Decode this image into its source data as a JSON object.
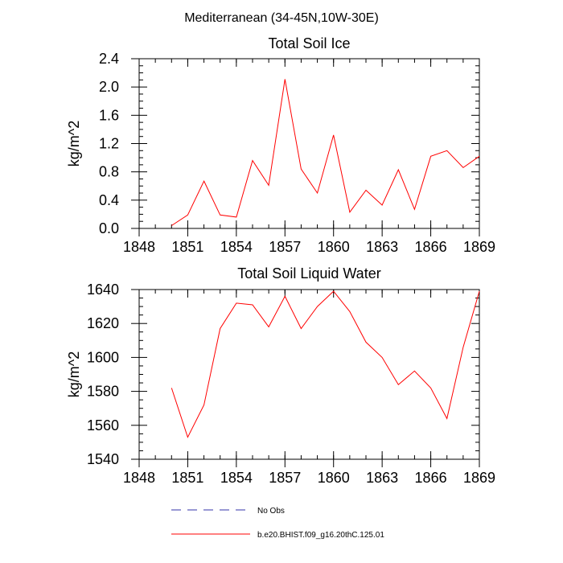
{
  "header": {
    "title": "Mediterranean (34-45N,10W-30E)"
  },
  "chart_data": [
    {
      "type": "line",
      "title": "Total Soil Ice",
      "ylabel": "kg/m^2",
      "xlim": [
        1848,
        1869
      ],
      "ylim": [
        0,
        2.4
      ],
      "xticks": [
        "1848",
        "1851",
        "1854",
        "1857",
        "1860",
        "1863",
        "1866",
        "1869"
      ],
      "yticks": [
        "0.0",
        "0.4",
        "0.8",
        "1.2",
        "1.6",
        "2.0",
        "2.4"
      ],
      "series": [
        {
          "name": "b.e20.BHIST.f09_g16.20thC.125.01",
          "color": "#ff0000",
          "x": [
            1850,
            1851,
            1852,
            1853,
            1854,
            1855,
            1856,
            1857,
            1858,
            1859,
            1860,
            1861,
            1862,
            1863,
            1864,
            1865,
            1866,
            1867,
            1868,
            1869
          ],
          "y": [
            0.04,
            0.19,
            0.67,
            0.19,
            0.16,
            0.96,
            0.61,
            2.11,
            0.84,
            0.5,
            1.32,
            0.23,
            0.54,
            0.33,
            0.83,
            0.27,
            1.02,
            1.1,
            0.86,
            1.02
          ]
        }
      ]
    },
    {
      "type": "line",
      "title": "Total Soil Liquid Water",
      "ylabel": "kg/m^2",
      "xlim": [
        1848,
        1869
      ],
      "ylim": [
        1540,
        1640
      ],
      "xticks": [
        "1848",
        "1851",
        "1854",
        "1857",
        "1860",
        "1863",
        "1866",
        "1869"
      ],
      "yticks": [
        "1540",
        "1560",
        "1580",
        "1600",
        "1620",
        "1640"
      ],
      "series": [
        {
          "name": "b.e20.BHIST.f09_g16.20thC.125.01",
          "color": "#ff0000",
          "x": [
            1850,
            1851,
            1852,
            1853,
            1854,
            1855,
            1856,
            1857,
            1858,
            1859,
            1860,
            1861,
            1862,
            1863,
            1864,
            1865,
            1866,
            1867,
            1868,
            1869
          ],
          "y": [
            1582,
            1553,
            1572,
            1617,
            1632,
            1631,
            1618,
            1636,
            1617,
            1630,
            1639,
            1627,
            1609,
            1600,
            1584,
            1592,
            1582,
            1564,
            1606,
            1639
          ]
        }
      ]
    }
  ],
  "legend": {
    "items": [
      {
        "label": "No Obs",
        "color": "#3333aa",
        "style": "dashed"
      },
      {
        "label": "b.e20.BHIST.f09_g16.20thC.125.01",
        "color": "#ff0000",
        "style": "solid"
      }
    ]
  }
}
